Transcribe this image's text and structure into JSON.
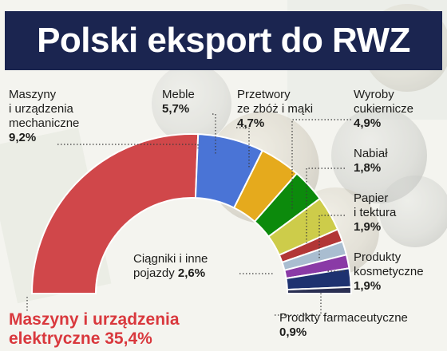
{
  "title": "Polski eksport do RWZ",
  "chart_data": {
    "type": "pie",
    "subtype": "half-donut",
    "series": [
      {
        "name": "Maszyny i urządzenia elektryczne",
        "value": 35.4,
        "value_label": "35,4%",
        "color": "#d0474a"
      },
      {
        "name": "Maszyny i urządzenia mechaniczne",
        "value": 9.2,
        "value_label": "9,2%",
        "color": "#4a74d6"
      },
      {
        "name": "Meble",
        "value": 5.7,
        "value_label": "5,7%",
        "color": "#e5aa1d"
      },
      {
        "name": "Przetwory ze zbóż i mąki",
        "value": 4.7,
        "value_label": "4,7%",
        "color": "#0c8a0c"
      },
      {
        "name": "Wyroby cukiernicze",
        "value": 4.9,
        "value_label": "4,9%",
        "color": "#cdcc4a"
      },
      {
        "name": "Nabiał",
        "value": 1.8,
        "value_label": "1,8%",
        "color": "#b23636"
      },
      {
        "name": "Papier i tektura",
        "value": 1.9,
        "value_label": "1,9%",
        "color": "#a9bdd0"
      },
      {
        "name": "Produkty kosmetyczne",
        "value": 1.9,
        "value_label": "1,9%",
        "color": "#8a3aa6"
      },
      {
        "name": "Ciągniki i inne pojazdy",
        "value": 2.6,
        "value_label": "2,6%",
        "color": "#1e3270"
      },
      {
        "name": "Prodkty farmaceutyczne",
        "value": 0.9,
        "value_label": "0,9%",
        "color": "#2a2f52"
      }
    ]
  },
  "labels": {
    "elec": {
      "l1": "Maszyny i urządzenia",
      "l2": "elektryczne",
      "v": "35,4%"
    },
    "mech": {
      "l1": "Maszyny",
      "l2": "i urządzenia",
      "l3": "mechaniczne",
      "v": "9,2%"
    },
    "meble": {
      "l1": "Meble",
      "v": "5,7%"
    },
    "przetwory": {
      "l1": "Przetwory",
      "l2": "ze zbóż i mąki",
      "v": "4,7%"
    },
    "wyroby": {
      "l1": "Wyroby",
      "l2": "cukiernicze",
      "v": "4,9%"
    },
    "nabial": {
      "l1": "Nabiał",
      "v": "1,8%"
    },
    "papier": {
      "l1": "Papier",
      "l2": "i tektura",
      "v": "1,9%"
    },
    "kosmetyczne": {
      "l1": "Produkty",
      "l2": "kosmetyczne",
      "v": "1,9%"
    },
    "ciagniki": {
      "l1": "Ciągniki i inne",
      "l2": "pojazdy",
      "v": "2,6%"
    },
    "farm": {
      "l1": "Prodkty farmaceutyczne",
      "v": "0,9%"
    }
  },
  "colors": {
    "title_bg": "#1b2550",
    "accent_red": "#d9383d"
  }
}
